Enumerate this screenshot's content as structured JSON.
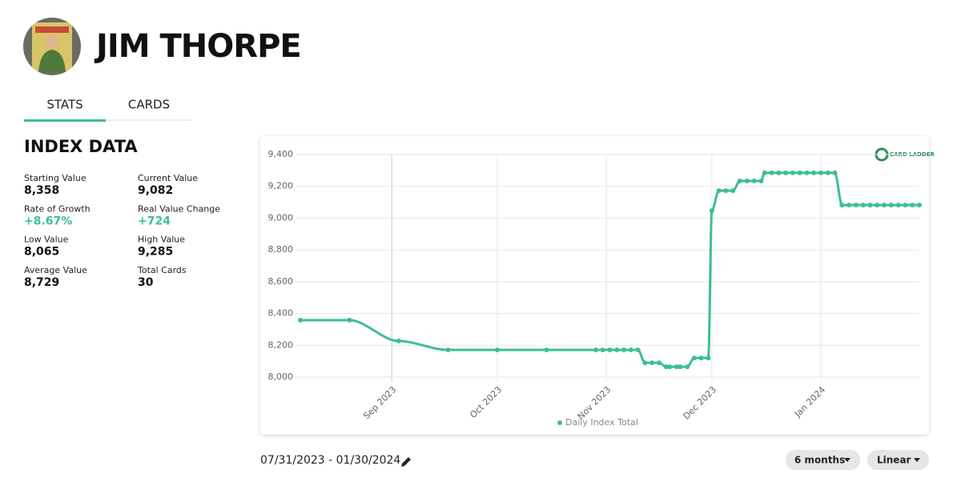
{
  "header": {
    "name": "JIM THORPE"
  },
  "tabs": [
    "STATS",
    "CARDS"
  ],
  "index_data": {
    "title": "INDEX DATA",
    "stats": [
      {
        "label": "Starting Value",
        "value": "8,358"
      },
      {
        "label": "Current Value",
        "value": "9,082"
      },
      {
        "label": "Rate of Growth",
        "value": "+8.67%"
      },
      {
        "label": "Real Value Change",
        "value": "+724"
      },
      {
        "label": "Low Value",
        "value": "8,065"
      },
      {
        "label": "High Value",
        "value": "9,285"
      },
      {
        "label": "Average Value",
        "value": "8,729"
      },
      {
        "label": "Total Cards",
        "value": "30"
      }
    ]
  },
  "logo": "CARD LADDER",
  "chart_data": {
    "type": "line",
    "x": [
      "2023-08-06",
      "2023-08-20",
      "2023-09-03",
      "2023-09-17",
      "2023-10-01",
      "2023-10-15",
      "2023-10-29",
      "2023-10-31",
      "2023-11-02",
      "2023-11-04",
      "2023-11-06",
      "2023-11-08",
      "2023-11-10",
      "2023-11-12",
      "2023-11-14",
      "2023-11-16",
      "2023-11-18",
      "2023-11-19",
      "2023-11-21",
      "2023-11-22",
      "2023-11-24",
      "2023-11-26",
      "2023-11-28",
      "2023-11-30",
      "2023-12-01",
      "2023-12-03",
      "2023-12-05",
      "2023-12-07",
      "2023-12-09",
      "2023-12-11",
      "2023-12-13",
      "2023-12-15",
      "2023-12-16",
      "2023-12-18",
      "2023-12-20",
      "2023-12-22",
      "2023-12-24",
      "2023-12-26",
      "2023-12-28",
      "2023-12-30",
      "2024-01-01",
      "2024-01-03",
      "2024-01-05",
      "2024-01-07",
      "2024-01-09",
      "2024-01-11",
      "2024-01-13",
      "2024-01-15",
      "2024-01-17",
      "2024-01-19",
      "2024-01-21",
      "2024-01-23",
      "2024-01-25",
      "2024-01-27",
      "2024-01-29"
    ],
    "series": [
      {
        "name": "Daily Index Total",
        "color": "#3dbf8f",
        "values": [
          8358,
          8358,
          8227,
          8171,
          8171,
          8171,
          8171,
          8171,
          8171,
          8171,
          8171,
          8171,
          8171,
          8090,
          8090,
          8090,
          8065,
          8065,
          8065,
          8065,
          8065,
          8120,
          8120,
          8120,
          9047,
          9173,
          9173,
          9173,
          9234,
          9234,
          9234,
          9234,
          9285,
          9285,
          9285,
          9285,
          9285,
          9285,
          9285,
          9285,
          9285,
          9285,
          9285,
          9082,
          9082,
          9082,
          9082,
          9082,
          9082,
          9082,
          9082,
          9082,
          9082,
          9082,
          9082
        ]
      }
    ],
    "xlim": [
      "2023-08-06",
      "2024-01-29"
    ],
    "xticks": [
      {
        "value": "2023-09-01",
        "label": "Sep 2023"
      },
      {
        "value": "2023-10-01",
        "label": "Oct 2023"
      },
      {
        "value": "2023-11-01",
        "label": "Nov 2023"
      },
      {
        "value": "2023-12-01",
        "label": "Dec 2023"
      },
      {
        "value": "2024-01-01",
        "label": "Jan 2024"
      }
    ],
    "ylim": [
      8000,
      9400
    ],
    "yticks": [
      {
        "value": 8000,
        "label": "8,000"
      },
      {
        "value": 8200,
        "label": "8,200"
      },
      {
        "value": 8400,
        "label": "8,400"
      },
      {
        "value": 8600,
        "label": "8,600"
      },
      {
        "value": 8800,
        "label": "8,800"
      },
      {
        "value": 9000,
        "label": "9,000"
      },
      {
        "value": 9200,
        "label": "9,200"
      },
      {
        "value": 9400,
        "label": "9,400"
      }
    ],
    "grid": true,
    "legend": "bottom"
  },
  "controls": {
    "date_range": "07/31/2023 - 01/30/2024",
    "period": "6 months",
    "scale": "Linear"
  }
}
